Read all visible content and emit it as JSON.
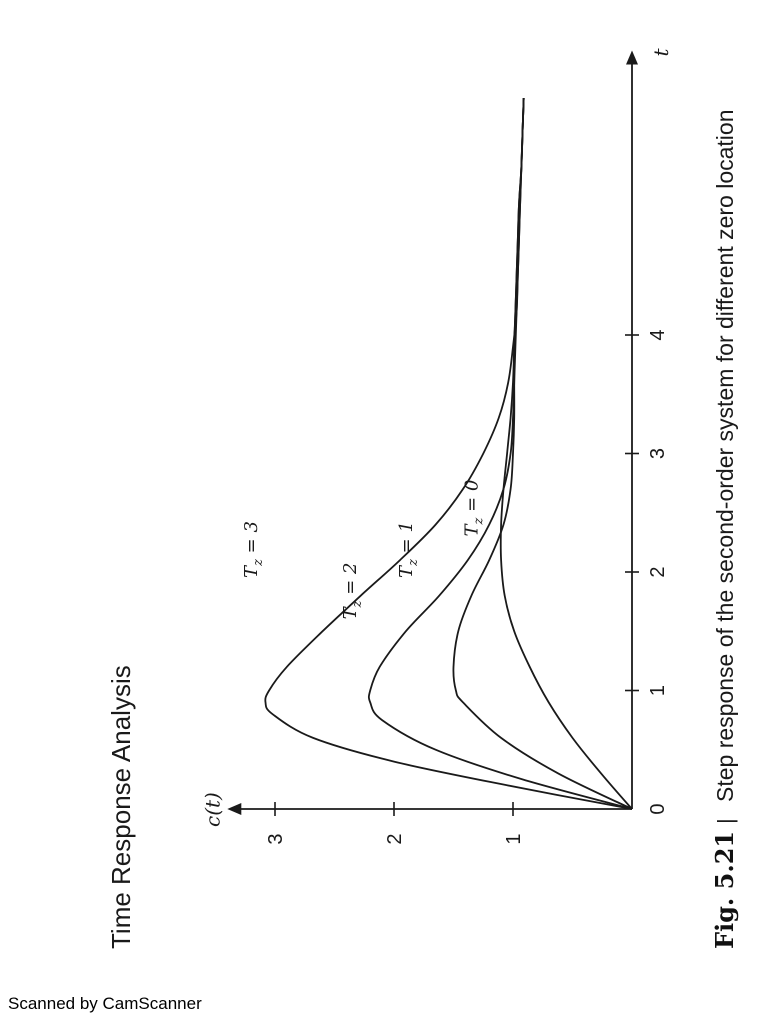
{
  "page": {
    "header_text": "Time Response Analysis",
    "figure_number": "Fig. 5.21",
    "figure_separator": "|",
    "caption": "Step response of the second-order system for different zero location",
    "scanner_note": "Scanned by CamScanner"
  },
  "chart_data": {
    "type": "line",
    "xlabel": "t",
    "ylabel": "c(t)",
    "xlim": [
      0,
      6.3
    ],
    "ylim": [
      0,
      3.3
    ],
    "x_ticks": [
      "0",
      "1",
      "2",
      "3",
      "4"
    ],
    "y_ticks": [
      "1",
      "2",
      "3"
    ],
    "grid": false,
    "colors": {
      "ink": "#1a1a1a"
    },
    "series": [
      {
        "name": "T_z = 0",
        "label_main": "T",
        "label_sub": "z",
        "label_rest": " = 0",
        "x": [
          0,
          0.3,
          0.6,
          0.9,
          1.2,
          1.5,
          1.8,
          2.1,
          2.4,
          2.7,
          3.0,
          3.3,
          3.6,
          3.9,
          4.2,
          4.5,
          4.8,
          5.1,
          5.4,
          5.7,
          6.0
        ],
        "y": [
          0,
          0.26,
          0.5,
          0.7,
          0.86,
          0.99,
          1.07,
          1.1,
          1.1,
          1.08,
          1.05,
          1.02,
          1.0,
          0.99,
          0.98,
          0.97,
          0.96,
          0.95,
          0.93,
          0.92,
          0.91
        ]
      },
      {
        "name": "T_z = 1",
        "label_main": "T",
        "label_sub": "z",
        "label_rest": " = 1",
        "x": [
          0,
          0.3,
          0.6,
          0.9,
          1.0,
          1.2,
          1.5,
          1.8,
          2.1,
          2.4,
          2.7,
          3.0,
          3.3,
          3.6,
          3.9,
          4.2,
          4.5,
          4.8,
          5.1,
          5.4,
          5.7,
          6.0
        ],
        "y": [
          0,
          0.62,
          1.1,
          1.42,
          1.48,
          1.5,
          1.46,
          1.35,
          1.2,
          1.08,
          1.02,
          1.0,
          0.99,
          0.99,
          0.99,
          0.98,
          0.97,
          0.96,
          0.95,
          0.93,
          0.92,
          0.91
        ]
      },
      {
        "name": "T_z = 2",
        "label_main": "T",
        "label_sub": "z",
        "label_rest": " = 2",
        "x": [
          0,
          0.25,
          0.5,
          0.75,
          0.9,
          1.0,
          1.2,
          1.5,
          1.8,
          2.1,
          2.4,
          2.7,
          3.0,
          3.3,
          3.6,
          3.9,
          4.2,
          4.5,
          4.8,
          5.1,
          5.4,
          5.7,
          6.0
        ],
        "y": [
          0,
          0.92,
          1.65,
          2.1,
          2.2,
          2.2,
          2.12,
          1.9,
          1.62,
          1.38,
          1.2,
          1.08,
          1.02,
          1.0,
          0.99,
          0.98,
          0.97,
          0.96,
          0.95,
          0.94,
          0.93,
          0.92,
          0.91
        ]
      },
      {
        "name": "T_z = 3",
        "label_main": "T",
        "label_sub": "z",
        "label_rest": " = 3",
        "x": [
          0,
          0.2,
          0.4,
          0.6,
          0.8,
          0.9,
          1.0,
          1.2,
          1.5,
          1.8,
          2.1,
          2.4,
          2.7,
          3.0,
          3.3,
          3.6,
          3.9,
          4.2,
          4.5,
          4.8,
          5.1,
          5.4,
          5.7,
          6.0
        ],
        "y": [
          0,
          1.05,
          2.0,
          2.68,
          3.02,
          3.08,
          3.05,
          2.9,
          2.6,
          2.28,
          1.95,
          1.65,
          1.42,
          1.25,
          1.12,
          1.04,
          1.0,
          0.97,
          0.96,
          0.95,
          0.94,
          0.93,
          0.92,
          0.91
        ]
      }
    ],
    "label_positions": [
      {
        "series": "T_z = 0",
        "x": 2.3,
        "y": 1.3
      },
      {
        "series": "T_z = 1",
        "x": 1.95,
        "y": 1.85
      },
      {
        "series": "T_z = 2",
        "x": 1.6,
        "y": 2.32
      },
      {
        "series": "T_z = 3",
        "x": 1.95,
        "y": 3.15
      }
    ]
  }
}
